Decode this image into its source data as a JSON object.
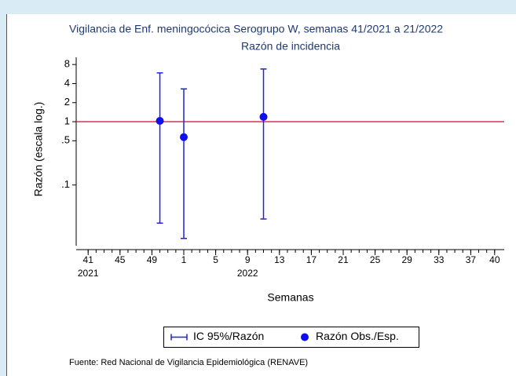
{
  "chart_data": {
    "type": "rcap-scatter",
    "title": "Vigilancia de Enf. meningocócica Serogrupo W, semanas 41/2021 a 21/2022",
    "subtitle": "Razón de incidencia",
    "y_label": "Razón (escala log.)",
    "x_label": "Semanas",
    "source": "Fuente: Red Nacional de Vigilancia Epidemiológica (RENAVE)",
    "log_y": true,
    "ylim": [
      0.011,
      10.4
    ],
    "yticks": [
      8,
      4,
      2,
      1,
      {
        "value": 0.5,
        "label": ".5"
      },
      {
        "value": 0.1,
        "label": ".1"
      }
    ],
    "xlim": [
      39.5,
      93.2
    ],
    "xticks": [
      41,
      45,
      49,
      {
        "value": 53,
        "label": "1"
      },
      {
        "value": 57,
        "label": "5"
      },
      {
        "value": 61,
        "label": "9"
      },
      {
        "value": 65,
        "label": "13"
      },
      {
        "value": 69,
        "label": "17"
      },
      {
        "value": 73,
        "label": "21"
      },
      {
        "value": 77,
        "label": "25"
      },
      {
        "value": 81,
        "label": "29"
      },
      {
        "value": 85,
        "label": "33"
      },
      {
        "value": 89,
        "label": "37"
      },
      {
        "value": 92,
        "label": "40"
      }
    ],
    "xminorticks": [
      41,
      42,
      43,
      44,
      45,
      46,
      47,
      48,
      49,
      50,
      51,
      52,
      53,
      54,
      55,
      56,
      57,
      58,
      59,
      60,
      61,
      62,
      63,
      64,
      65,
      66,
      67,
      68,
      69,
      70,
      71,
      72,
      73,
      74,
      75,
      76,
      77,
      78,
      79,
      80,
      81,
      82,
      83,
      84,
      85,
      86,
      87,
      88,
      89,
      90,
      91,
      92
    ],
    "xyearlabels": [
      {
        "value": 41,
        "label": "2021"
      },
      {
        "value": 61,
        "label": "2022"
      }
    ],
    "x": [
      50,
      53,
      63
    ],
    "series": [
      {
        "name": "IC 95%/Razón",
        "kind": "rcap",
        "color": "#2222dd",
        "lower": [
          0.025,
          0.0143,
          0.029
        ],
        "upper": [
          5.9,
          3.3,
          6.8
        ]
      },
      {
        "name": "Razón Obs./Esp.",
        "kind": "scatter",
        "color": "#1010ee",
        "values": [
          1.03,
          0.57,
          1.19
        ]
      }
    ],
    "reference_line": {
      "value": 1,
      "color": "#c8102e"
    }
  }
}
